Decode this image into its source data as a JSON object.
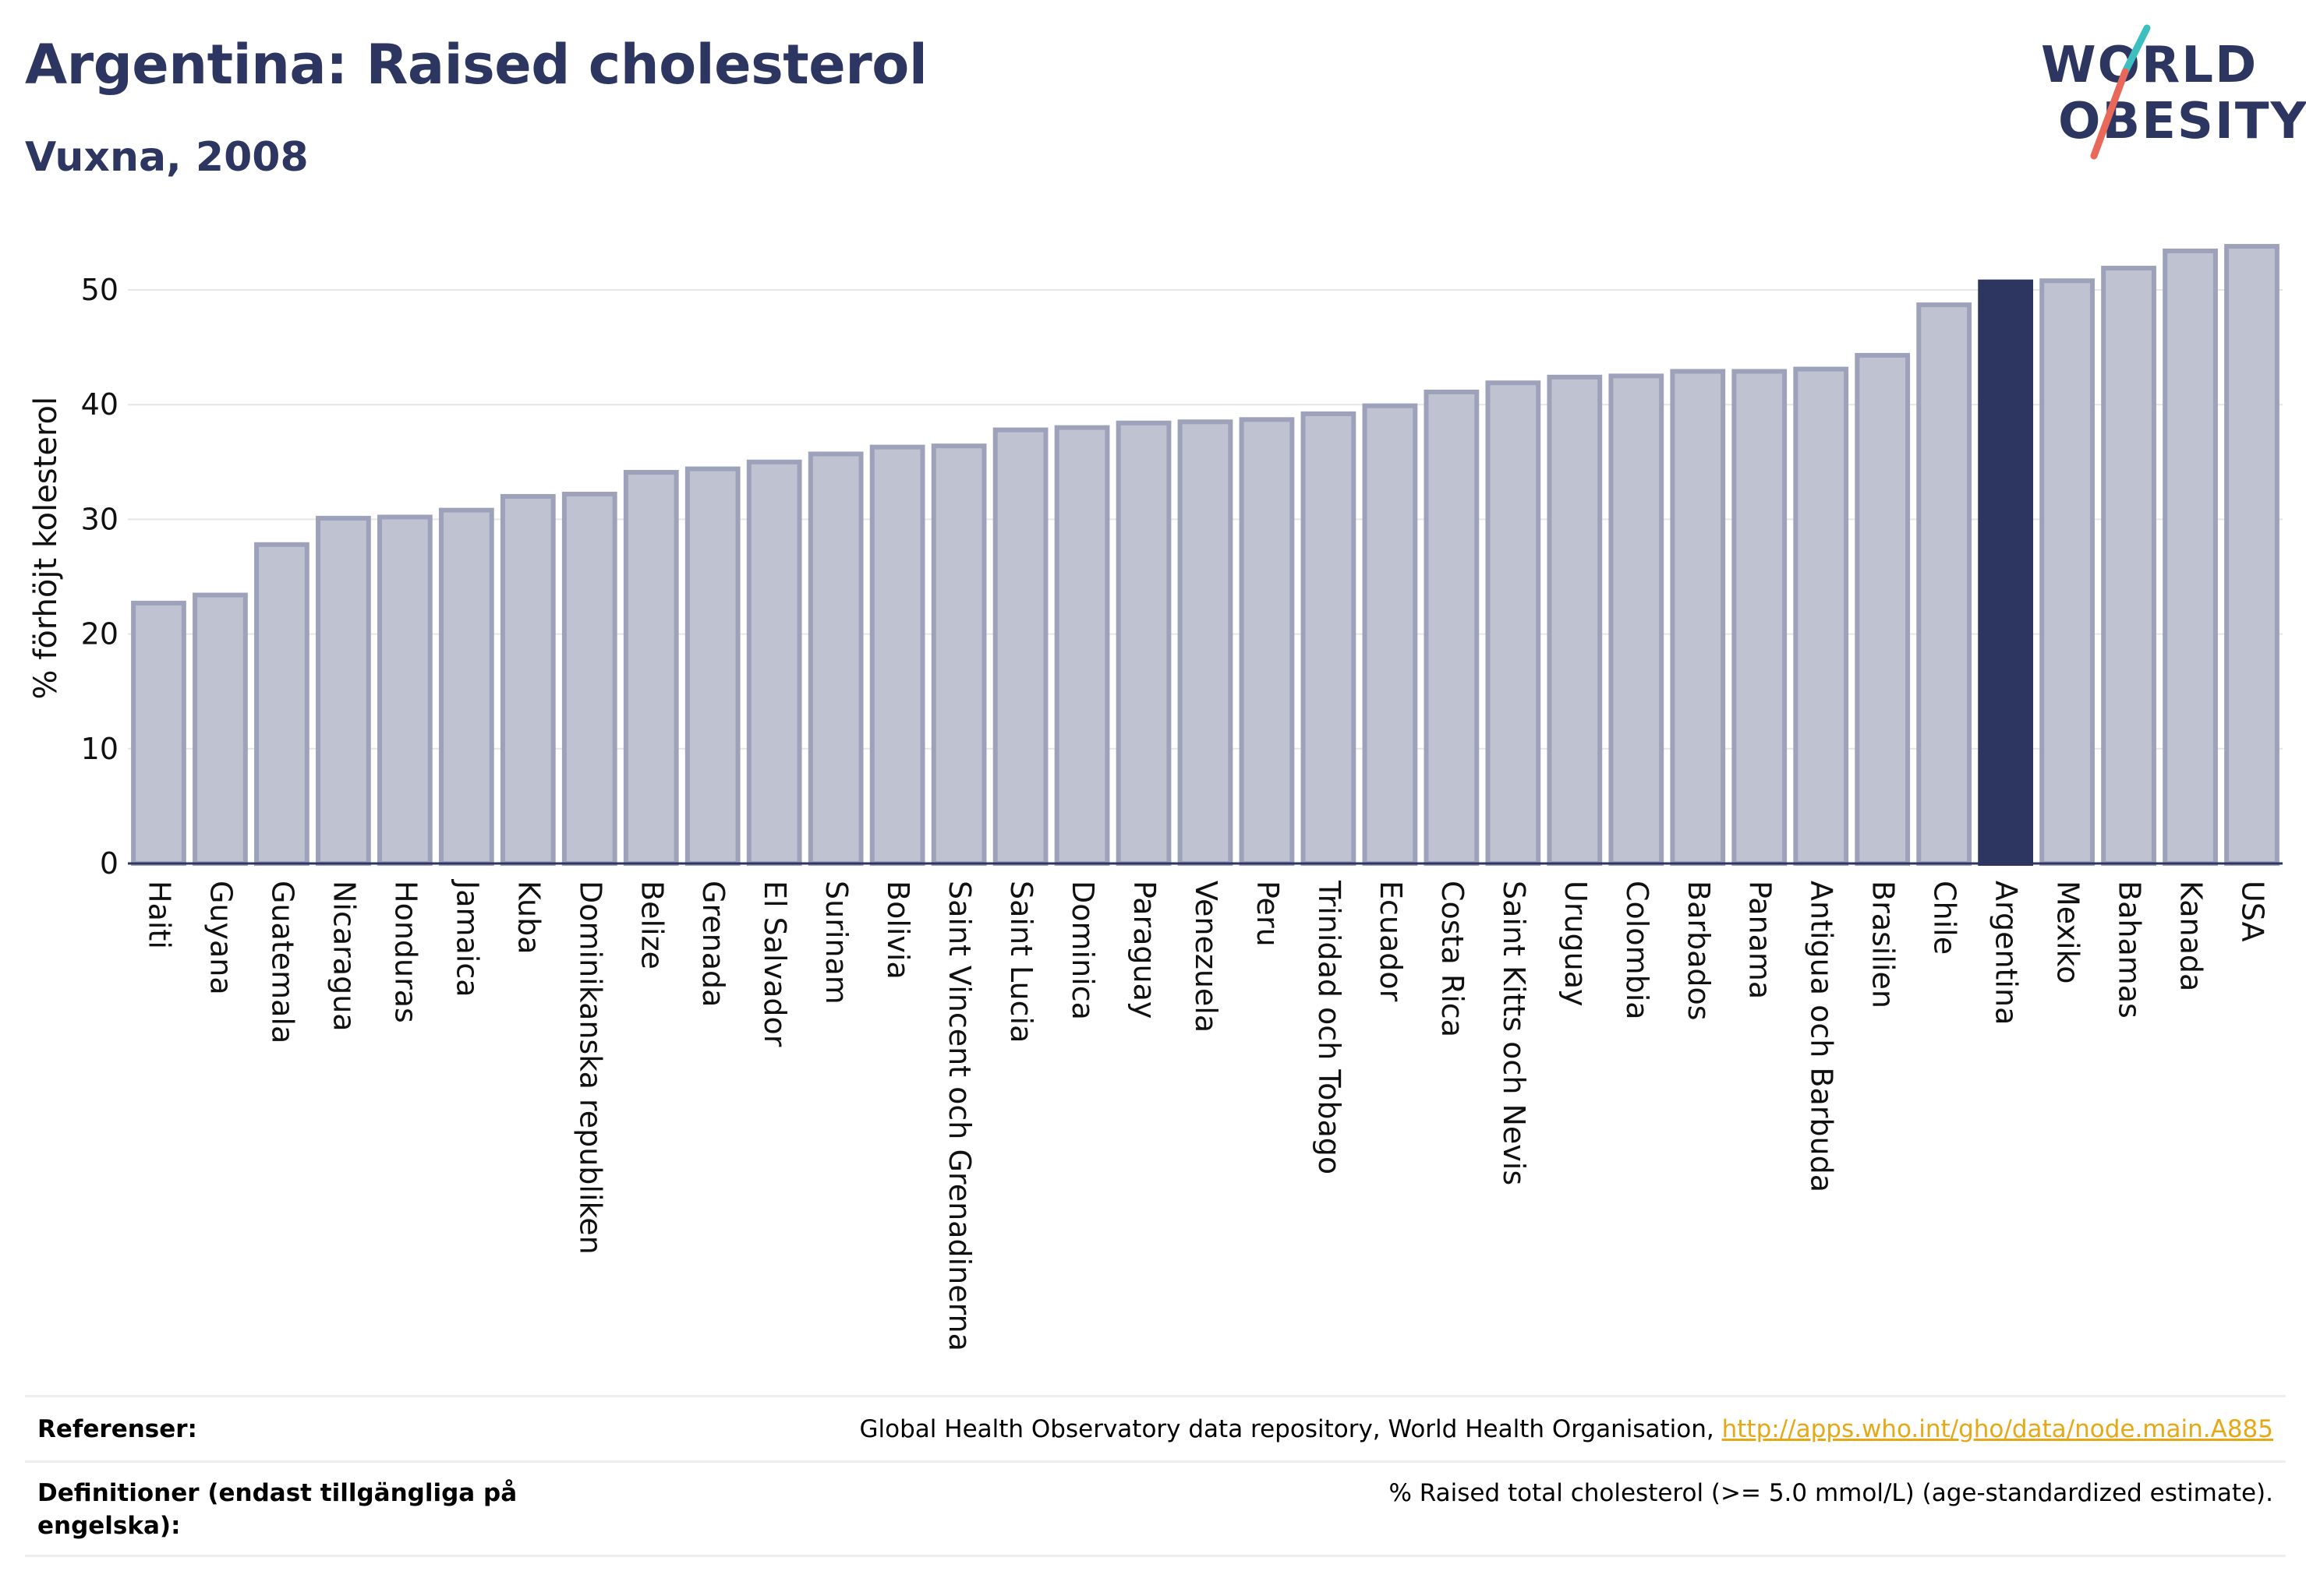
{
  "header": {
    "title": "Argentina: Raised cholesterol",
    "subtitle": "Vuxna, 2008"
  },
  "logo": {
    "line1": "WORLD",
    "line2": "OBESITY",
    "colors": {
      "text": "#2d3561",
      "slash_top": "#3dbfbf",
      "slash_bottom": "#e8685a"
    }
  },
  "colors": {
    "bar_default": "#bfc2d0",
    "bar_border": "#9da2ba",
    "bar_highlight": "#2d3561",
    "axis": "#2d3561",
    "grid": "#e6e6e6"
  },
  "chart_data": {
    "type": "bar",
    "title": "",
    "xlabel": "",
    "ylabel": "% förhöjt kolesterol",
    "ylim": [
      0,
      55
    ],
    "yticks": [
      0,
      10,
      20,
      30,
      40,
      50
    ],
    "grid": true,
    "highlight": "Argentina",
    "categories": [
      "Haiti",
      "Guyana",
      "Guatemala",
      "Nicaragua",
      "Honduras",
      "Jamaica",
      "Kuba",
      "Dominikanska republiken",
      "Belize",
      "Grenada",
      "El Salvador",
      "Surinam",
      "Bolivia",
      "Saint Vincent och Grenadinerna",
      "Saint Lucia",
      "Dominica",
      "Paraguay",
      "Venezuela",
      "Peru",
      "Trinidad och Tobago",
      "Ecuador",
      "Costa Rica",
      "Saint Kitts och Nevis",
      "Uruguay",
      "Colombia",
      "Barbados",
      "Panama",
      "Antigua och Barbuda",
      "Brasilien",
      "Chile",
      "Argentina",
      "Mexiko",
      "Bahamas",
      "Kanada",
      "USA"
    ],
    "values": [
      22.7,
      23.4,
      27.8,
      30.1,
      30.2,
      30.8,
      32.0,
      32.2,
      34.1,
      34.4,
      35.0,
      35.7,
      36.3,
      36.4,
      37.8,
      38.0,
      38.4,
      38.5,
      38.7,
      39.2,
      39.9,
      41.1,
      41.9,
      42.4,
      42.5,
      42.9,
      42.9,
      43.1,
      44.3,
      48.7,
      50.7,
      50.8,
      51.9,
      53.4,
      53.8
    ]
  },
  "footer": {
    "references_label": "Referenser:",
    "references_text": "Global Health Observatory data repository, World Health Organisation,",
    "references_link": "http://apps.who.int/gho/data/node.main.A885",
    "definitions_label": "Definitioner (endast tillgängliga på engelska):",
    "definitions_text": "% Raised total cholesterol (>= 5.0 mmol/L) (age-standardized estimate)."
  }
}
